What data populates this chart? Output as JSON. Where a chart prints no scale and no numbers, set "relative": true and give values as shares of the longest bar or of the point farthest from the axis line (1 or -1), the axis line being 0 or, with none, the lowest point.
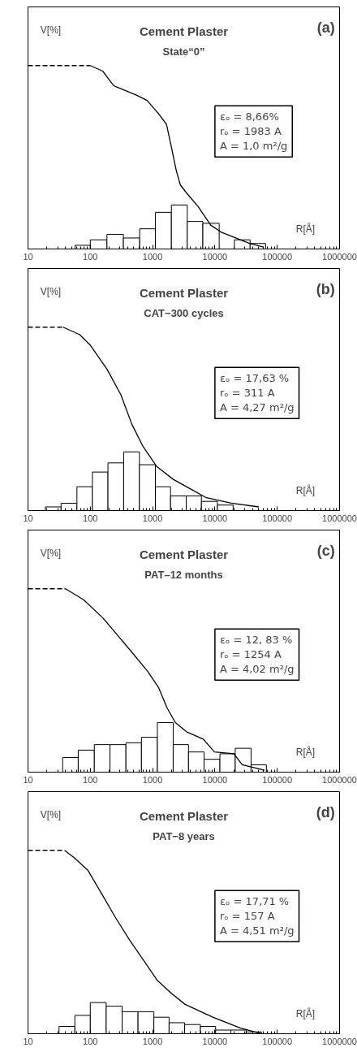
{
  "chart_data": [
    {
      "type": "line",
      "title": "Cement Plaster",
      "subtitle": "State“0”",
      "xlabel": "R[Å]",
      "ylabel": "V[%]",
      "relative": true,
      "log": "x",
      "xlim": [
        10,
        1000000
      ],
      "xticks": [
        10,
        100,
        1000,
        10000,
        100000,
        1000000
      ],
      "annotations": [
        "(a)",
        "100",
        "εₒ = 8,66%",
        "rₒ = 1983 A",
        "A = 1,0 m²/g"
      ],
      "series": [
        {
          "line_style": "dashed",
          "color": "#000000",
          "x": [
            10,
            100
          ],
          "values": [
            1.0,
            1.0
          ]
        },
        {
          "color": "#000000",
          "x": [
            100,
            158,
            215,
            239,
            541,
            815,
            1227,
            1668,
            2047,
            2387,
            2782,
            3415,
            5412,
            8577,
            12915,
            21544,
            35938,
            60000
          ],
          "values": [
            1.0,
            0.97,
            0.91,
            0.89,
            0.84,
            0.81,
            0.74,
            0.68,
            0.54,
            0.43,
            0.35,
            0.31,
            0.23,
            0.13,
            0.09,
            0.06,
            0.03,
            0.01
          ]
        },
        {
          "type": "histogram",
          "color": "#ffffff",
          "bins": [
            57,
            100,
            185,
            340,
            620,
            1110,
            2000,
            3600,
            6400,
            11700,
            20500,
            36700,
            65000
          ],
          "values": [
            0.02,
            0.05,
            0.08,
            0.06,
            0.11,
            0.2,
            0.24,
            0.15,
            0.14,
            null,
            0.05,
            0.03
          ]
        }
      ]
    },
    {
      "type": "line",
      "title": "Cement Plaster",
      "subtitle": "CAT−300 cycles",
      "xlabel": "R[Å]",
      "ylabel": "V[%]",
      "relative": true,
      "log": "x",
      "xlim": [
        10,
        1000000
      ],
      "xticks": [
        10,
        100,
        1000,
        10000,
        100000,
        1000000
      ],
      "annotations": [
        "(b)",
        "100",
        "εₒ = 17,63 %",
        "rₒ = 311 A",
        "A = 4,27 m²/g"
      ],
      "series": [
        {
          "line_style": "dashed",
          "color": "#000000",
          "x": [
            10,
            36.5
          ],
          "values": [
            1.0,
            1.0
          ]
        },
        {
          "color": "#000000",
          "x": [
            36.5,
            67,
            101,
            186,
            311,
            465,
            700,
            1165,
            2146,
            3955,
            7290,
            18240,
            50600
          ],
          "values": [
            1.0,
            0.96,
            0.9,
            0.77,
            0.63,
            0.47,
            0.35,
            0.24,
            0.17,
            0.12,
            0.07,
            0.04,
            0.02
          ]
        },
        {
          "type": "histogram",
          "color": "#ffffff",
          "bins": [
            19,
            34,
            61,
            108,
            192,
            343,
            614,
            1107,
            1940,
            3467,
            6073,
            10970,
            19590
          ],
          "values": [
            0.02,
            0.04,
            0.13,
            0.21,
            0.26,
            0.32,
            0.25,
            0.13,
            0.08,
            0.08,
            0.05,
            0.03
          ]
        }
      ]
    },
    {
      "type": "line",
      "title": "Cement Plaster",
      "subtitle": "PAT–12 months",
      "xlabel": "R[Å]",
      "ylabel": "V[%]",
      "relative": true,
      "log": "x",
      "xlim": [
        10,
        1000000
      ],
      "xticks": [
        10,
        100,
        1000,
        10000,
        100000,
        1000000
      ],
      "annotations": [
        "(c)",
        "100",
        "εₒ = 12, 83 %",
        "rₒ = 1254 A",
        "A = 4,02 m²/g"
      ],
      "series": [
        {
          "line_style": "dashed",
          "color": "#000000",
          "x": [
            10,
            40
          ],
          "values": [
            1.0,
            1.0
          ]
        },
        {
          "color": "#000000",
          "x": [
            40,
            78,
            160,
            268,
            449,
            832,
            1253,
            1706,
            2322,
            3506,
            6500,
            9800,
            20140,
            27400,
            62400
          ],
          "values": [
            1.0,
            0.94,
            0.84,
            0.75,
            0.66,
            0.55,
            0.46,
            0.35,
            0.27,
            0.22,
            0.18,
            0.11,
            0.1,
            0.04,
            0.01
          ]
        },
        {
          "type": "histogram",
          "color": "#ffffff",
          "bins": [
            36,
            64,
            116,
            207,
            373,
            662,
            1192,
            2138,
            3767,
            6700,
            12020,
            21200,
            38000,
            67000
          ],
          "values": [
            0.08,
            0.12,
            0.15,
            0.15,
            0.16,
            0.19,
            0.27,
            0.15,
            0.11,
            0.07,
            0.1,
            0.13,
            0.04
          ]
        }
      ]
    },
    {
      "type": "line",
      "title": "Cement Plaster",
      "subtitle": "PAT−8 years",
      "xlabel": "R[Å]",
      "ylabel": "V[%]",
      "relative": true,
      "log": "x",
      "xlim": [
        10,
        1000000
      ],
      "xticks": [
        10,
        100,
        1000,
        10000,
        100000,
        1000000
      ],
      "annotations": [
        "(d)",
        "100",
        "εₒ = 17,71 %",
        "rₒ = 157 A",
        "A = 4,51 m²/g"
      ],
      "series": [
        {
          "line_style": "dashed",
          "color": "#000000",
          "x": [
            10,
            38.6
          ],
          "values": [
            1.0,
            1.0
          ]
        },
        {
          "color": "#000000",
          "x": [
            38.6,
            55,
            92,
            154,
            257,
            429,
            716,
            1195,
            1995,
            3326,
            9270,
            25800,
            55700
          ],
          "values": [
            1.0,
            0.96,
            0.89,
            0.76,
            0.63,
            0.51,
            0.4,
            0.29,
            0.22,
            0.16,
            0.09,
            0.03,
            0.0
          ]
        },
        {
          "type": "histogram",
          "color": "#ffffff",
          "bins": [
            31.5,
            56.5,
            100,
            180,
            325,
            583,
            1047,
            1838,
            3259,
            5850,
            10270,
            18040,
            31700,
            55700
          ],
          "values": [
            0.04,
            0.1,
            0.17,
            0.15,
            0.12,
            0.12,
            0.09,
            0.06,
            0.05,
            0.04,
            0.02,
            0.02,
            0.01
          ]
        }
      ]
    }
  ]
}
